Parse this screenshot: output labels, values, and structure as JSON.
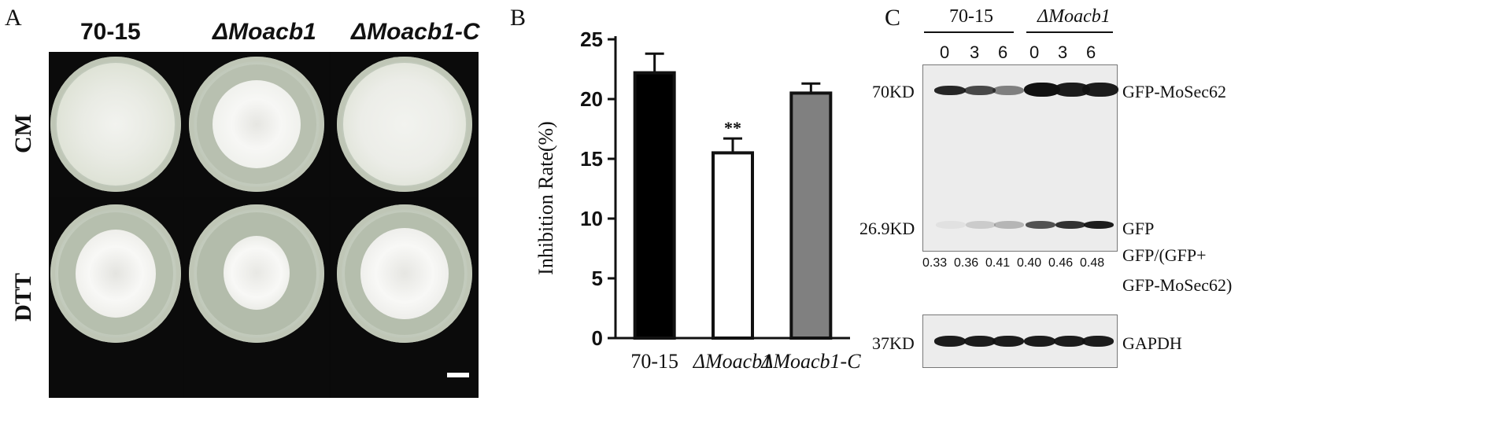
{
  "panel_a": {
    "letter": "A",
    "columns": [
      "70-15",
      "ΔMoacb1",
      "ΔMoacb1-C"
    ],
    "rows": [
      "CM",
      "DTT"
    ]
  },
  "panel_b": {
    "letter": "B",
    "significance": "**"
  },
  "chart_data": {
    "type": "bar",
    "categories": [
      "70-15",
      "ΔMoacb1",
      "ΔMoacb1-C"
    ],
    "values": [
      22.2,
      15.5,
      20.5
    ],
    "errors": [
      1.6,
      1.2,
      0.8
    ],
    "bar_colors": [
      "#000000",
      "#ffffff",
      "#808080"
    ],
    "ylabel": "Inhibition Rate(%)",
    "ylim": [
      0,
      25
    ],
    "yticks": [
      "0",
      "5",
      "10",
      "15",
      "20",
      "25"
    ],
    "grid": false,
    "annotations": [
      {
        "category": "ΔMoacb1",
        "text": "**"
      }
    ]
  },
  "panel_c": {
    "letter": "C",
    "groups": [
      "70-15",
      "ΔMoacb1"
    ],
    "timepoints": [
      "0",
      "3",
      "6",
      "0",
      "3",
      "6"
    ],
    "markers": [
      "70KD",
      "26.9KD",
      "37KD"
    ],
    "band_labels": [
      "GFP-MoSec62",
      "GFP",
      "GAPDH"
    ],
    "ratio_label_line1": "GFP/(GFP+",
    "ratio_label_line2": "GFP-MoSec62)",
    "ratios": [
      "0.33",
      "0.36",
      "0.41",
      "0.40",
      "0.46",
      "0.48"
    ],
    "gfp_band_intensity": [
      0.05,
      0.15,
      0.25,
      0.7,
      0.85,
      0.95
    ],
    "sec62_band_intensity": [
      0.9,
      0.75,
      0.5,
      1.0,
      0.95,
      0.95
    ]
  }
}
